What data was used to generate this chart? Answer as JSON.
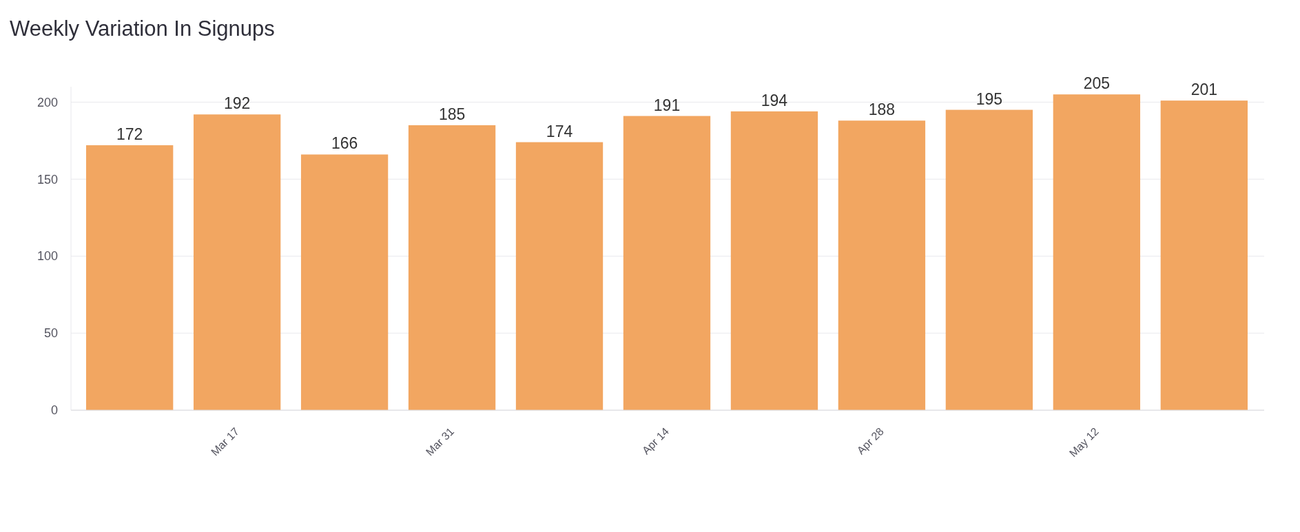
{
  "chart_data": {
    "type": "bar",
    "title": "Weekly Variation In Signups",
    "categories": [
      null,
      "Mar 17",
      null,
      "Mar 31",
      null,
      "Apr 14",
      null,
      "Apr 28",
      null,
      "May 12",
      null
    ],
    "values": [
      172,
      192,
      166,
      185,
      174,
      191,
      194,
      188,
      195,
      205,
      201
    ],
    "color": "#f2a661",
    "ylim": [
      0,
      210
    ],
    "yticks": [
      0,
      50,
      100,
      150,
      200
    ],
    "grid": "y",
    "data_labels": true
  }
}
